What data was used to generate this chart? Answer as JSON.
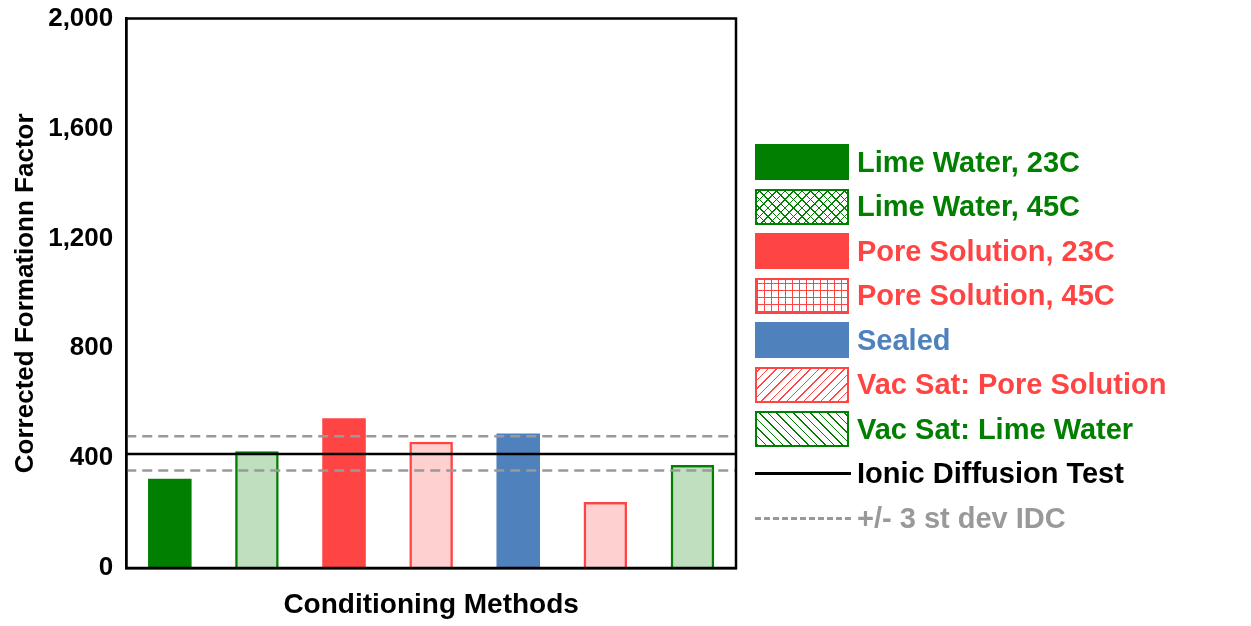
{
  "chart_data": {
    "type": "bar",
    "ylabel": "Corrected Formationn Factor",
    "xlabel": "Conditioning Methods",
    "categories": [
      null,
      null,
      null,
      null,
      null,
      null,
      null
    ],
    "series": [
      {
        "name": "Lime Water, 23C",
        "color": "#007f00",
        "values": [
          325,
          null,
          null,
          null,
          null,
          null,
          null
        ]
      },
      {
        "name": "Lime Water, 45C",
        "color": "#007f00",
        "values": [
          null,
          425,
          null,
          null,
          null,
          null,
          null
        ]
      },
      {
        "name": "Pore Solution, 23C",
        "color": "#ff4444",
        "values": [
          null,
          null,
          545,
          null,
          null,
          null,
          null
        ]
      },
      {
        "name": "Pore Solution, 45C",
        "color": "#ff4444",
        "values": [
          null,
          null,
          null,
          460,
          null,
          null,
          null
        ]
      },
      {
        "name": "Sealed",
        "color": "#4f81bd",
        "values": [
          null,
          null,
          null,
          null,
          490,
          null,
          null
        ]
      },
      {
        "name": "Vac Sat: Pore Solution",
        "color": "#ff4444",
        "values": [
          null,
          null,
          null,
          null,
          null,
          240,
          null
        ]
      },
      {
        "name": "Vac Sat: Lime Water",
        "color": "#007f00",
        "values": [
          null,
          null,
          null,
          null,
          null,
          null,
          375
        ]
      }
    ],
    "ylim": [
      0,
      2000
    ],
    "yticks": [
      0,
      400,
      800,
      {
        "value": 1200,
        "label": "1,200"
      },
      {
        "value": 1600,
        "label": "1,600"
      },
      {
        "value": 2000,
        "label": "2,000"
      }
    ],
    "ref_lines": [
      {
        "axis": "y",
        "value": 415,
        "label": "Ionic Diffusion Test",
        "color": "#000000",
        "line_style": "solid"
      },
      {
        "axis": "y",
        "value": 480,
        "label": "+/- 3 st dev IDC",
        "color": "#999999",
        "line_style": "dashed"
      },
      {
        "axis": "y",
        "value": 355,
        "color": "#999999",
        "line_style": "dashed"
      }
    ],
    "grid": false,
    "legend": "right"
  }
}
